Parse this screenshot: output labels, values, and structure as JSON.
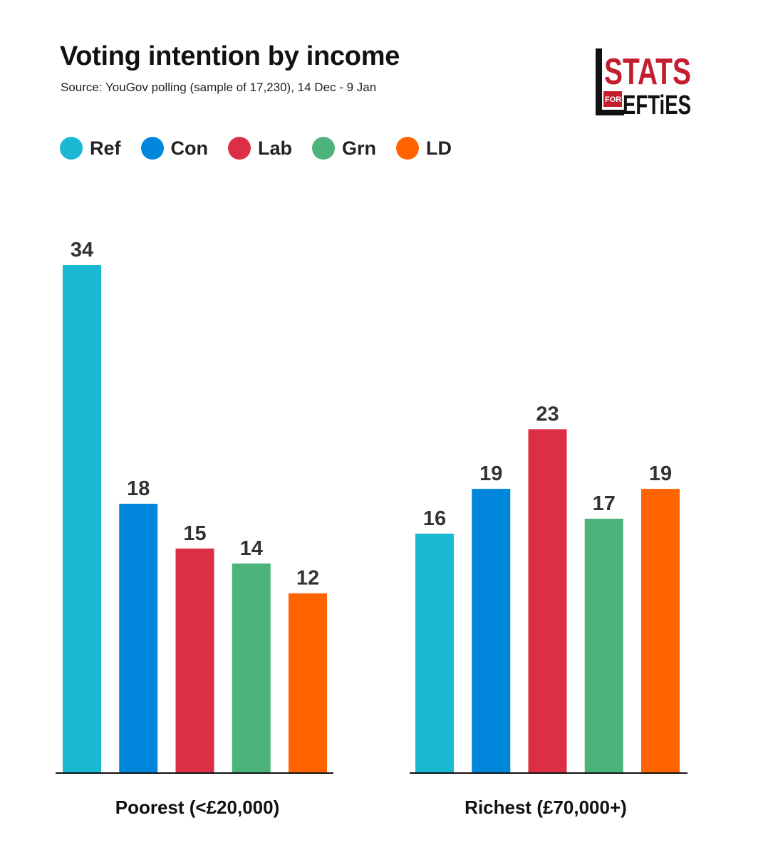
{
  "title": "Voting intention by income",
  "subtitle": "Source: YouGov polling (sample of 17,230), 14 Dec - 9 Jan",
  "logo": {
    "text_top": "STATS",
    "text_small": "FOR",
    "text_bottom": "EFTiES",
    "color": "#c41e2e"
  },
  "legend": [
    {
      "label": "Ref",
      "color": "#1ab8d2"
    },
    {
      "label": "Con",
      "color": "#0087dc"
    },
    {
      "label": "Lab",
      "color": "#dc2f45"
    },
    {
      "label": "Grn",
      "color": "#4bb37b"
    },
    {
      "label": "LD",
      "color": "#ff6400"
    }
  ],
  "chart_data": {
    "type": "bar",
    "title": "Voting intention by income",
    "subtitle": "Source: YouGov polling (sample of 17,230), 14 Dec - 9 Jan",
    "categories": [
      "Poorest (<£20,000)",
      "Richest (£70,000+)"
    ],
    "series": [
      {
        "name": "Ref",
        "color": "#1ab8d2",
        "values": [
          34,
          16
        ]
      },
      {
        "name": "Con",
        "color": "#0087dc",
        "values": [
          18,
          19
        ]
      },
      {
        "name": "Lab",
        "color": "#dc2f45",
        "values": [
          15,
          23
        ]
      },
      {
        "name": "Grn",
        "color": "#4bb37b",
        "values": [
          14,
          17
        ]
      },
      {
        "name": "LD",
        "color": "#ff6400",
        "values": [
          12,
          19
        ]
      }
    ],
    "ylim": [
      0,
      34
    ],
    "xlabel": "",
    "ylabel": "",
    "grid": false,
    "legend_position": "top-left"
  }
}
